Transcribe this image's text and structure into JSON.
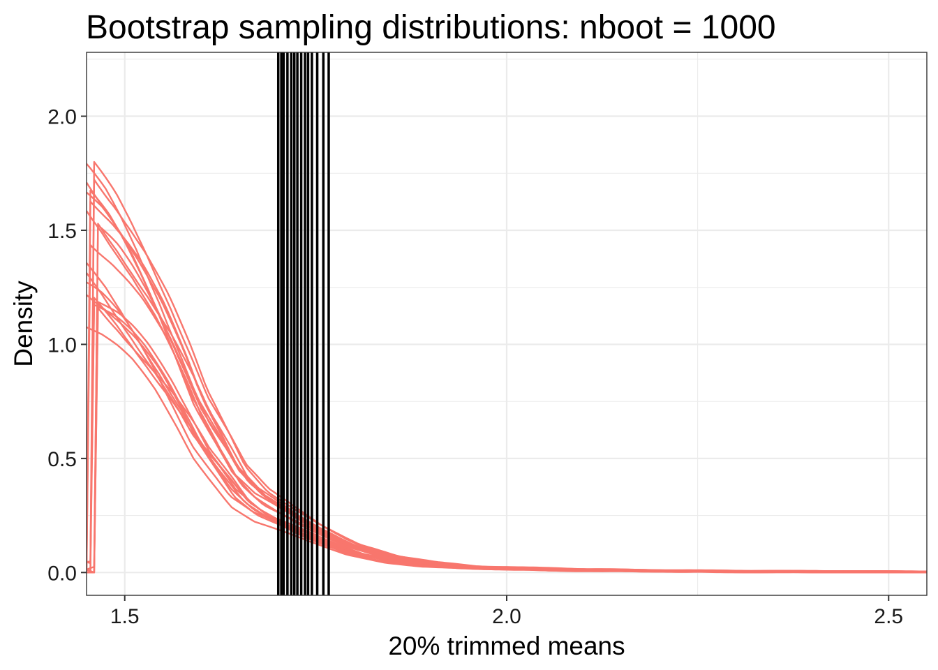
{
  "chart_data": {
    "type": "line",
    "title": "Bootstrap sampling distributions: nboot = 1000",
    "xlabel": "20% trimmed means",
    "ylabel": "Density",
    "xlim": [
      1.45,
      2.55
    ],
    "ylim": [
      -0.1,
      2.28
    ],
    "x_ticks": [
      1.5,
      2.0,
      2.5
    ],
    "x_tick_labels": [
      "1.5",
      "2.0",
      "2.5"
    ],
    "y_ticks": [
      0.0,
      0.5,
      1.0,
      1.5,
      2.0
    ],
    "y_tick_labels": [
      "0.0",
      "0.5",
      "1.0",
      "1.5",
      "2.0"
    ],
    "grid": true,
    "legend": "none",
    "line_color": "#f8766d",
    "vline_color": "#000000",
    "density_x": [
      1.45,
      1.48,
      1.5,
      1.52,
      1.55,
      1.58,
      1.6,
      1.63,
      1.65,
      1.68,
      1.7,
      1.73,
      1.75,
      1.78,
      1.8,
      1.85,
      1.9,
      1.95,
      2.0,
      2.1,
      2.2,
      2.3,
      2.4,
      2.5,
      2.55
    ],
    "density_mean": [
      1.62,
      1.5,
      1.4,
      1.29,
      1.1,
      0.88,
      0.72,
      0.55,
      0.43,
      0.33,
      0.29,
      0.23,
      0.19,
      0.14,
      0.11,
      0.065,
      0.04,
      0.025,
      0.02,
      0.012,
      0.008,
      0.005,
      0.004,
      0.003,
      0.002
    ],
    "n_curves": 20,
    "vlines_x": [
      1.701,
      1.705,
      1.708,
      1.713,
      1.718,
      1.722,
      1.726,
      1.731,
      1.736,
      1.74,
      1.745,
      1.752,
      1.76,
      1.767
    ]
  }
}
